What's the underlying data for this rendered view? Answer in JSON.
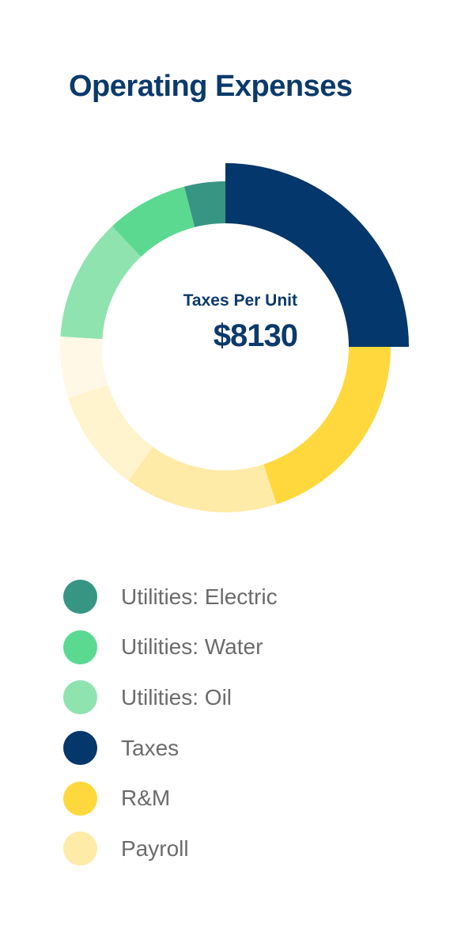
{
  "title": "Operating Expenses",
  "center": {
    "caption": "Taxes Per Unit",
    "value": "$8130"
  },
  "chart_data": {
    "type": "pie",
    "title": "Operating Expenses",
    "legend_placement": "bottom",
    "highlighted": "Taxes",
    "segments": [
      {
        "name": "Taxes",
        "value": 25,
        "color": "#04376b",
        "highlighted": true
      },
      {
        "name": "R&M",
        "value": 20,
        "color": "#ffd83d"
      },
      {
        "name": "Payroll",
        "value": 15,
        "color": "#ffeba8"
      },
      {
        "name": "",
        "value": 10,
        "color": "#fff4ce"
      },
      {
        "name": "",
        "value": 6,
        "color": "#fff8e6"
      },
      {
        "name": "Utilities: Oil",
        "value": 12,
        "color": "#8fe3ae"
      },
      {
        "name": "Utilities: Water",
        "value": 8,
        "color": "#5bd991"
      },
      {
        "name": "Utilities: Electric",
        "value": 4,
        "color": "#379584"
      }
    ]
  },
  "legend": [
    {
      "label": "Utilities: Electric",
      "color": "#379584"
    },
    {
      "label": "Utilities: Water",
      "color": "#5bd991"
    },
    {
      "label": "Utilities: Oil",
      "color": "#8fe3ae"
    },
    {
      "label": "Taxes",
      "color": "#04376b"
    },
    {
      "label": "R&M",
      "color": "#ffd83d"
    },
    {
      "label": "Payroll",
      "color": "#ffeba8"
    }
  ]
}
